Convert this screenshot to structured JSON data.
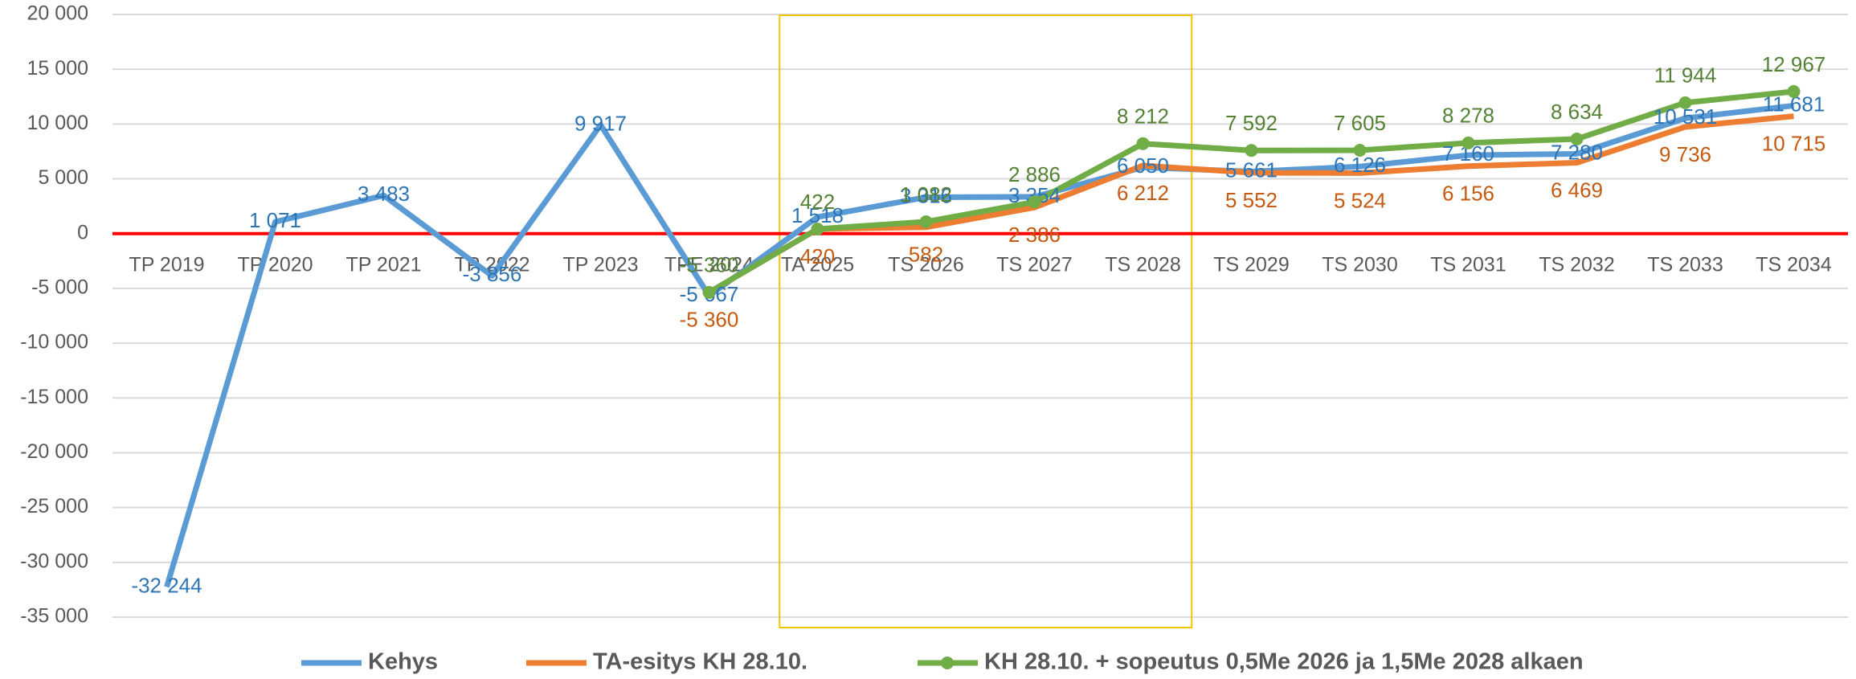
{
  "chart_data": {
    "type": "line",
    "categories": [
      "TP 2019",
      "TP 2020",
      "TP 2021",
      "TP 2022",
      "TP 2023",
      "TPE 2024",
      "TA 2025",
      "TS 2026",
      "TS 2027",
      "TS 2028",
      "TS 2029",
      "TS 2030",
      "TS 2031",
      "TS 2032",
      "TS 2033",
      "TS 2034"
    ],
    "series": [
      {
        "name": "Kehys",
        "color": "#5b9bd5",
        "values": [
          -32244,
          1071,
          3483,
          -3856,
          9917,
          -5667,
          1518,
          3316,
          3354,
          6050,
          5661,
          6126,
          7160,
          7280,
          10531,
          11681
        ],
        "value_labels": [
          "-32 244",
          "1 071",
          "3 483",
          "-3 856",
          "9 917",
          "-5 667",
          "1 518",
          "3 316",
          "3 354",
          "6 050",
          "5 661",
          "6 126",
          "7 160",
          "7 280",
          "10 531",
          "11 681"
        ]
      },
      {
        "name": "TA-esitys KH 28.10.",
        "color": "#ed7d31",
        "values": [
          null,
          null,
          null,
          null,
          null,
          -5360,
          420,
          582,
          2386,
          6212,
          5552,
          5524,
          6156,
          6469,
          9736,
          10715
        ],
        "value_labels": [
          null,
          null,
          null,
          null,
          null,
          "-5 360",
          "420",
          "582",
          "2 386",
          "6 212",
          "5 552",
          "5 524",
          "6 156",
          "6 469",
          "9 736",
          "10 715"
        ]
      },
      {
        "name": "KH 28.10. + sopeutus 0,5Me 2026 ja 1,5Me 2028 alkaen",
        "color": "#70ad47",
        "markers": true,
        "values": [
          null,
          null,
          null,
          null,
          null,
          -5360,
          422,
          1082,
          2886,
          8212,
          7592,
          7605,
          8278,
          8634,
          11944,
          12967
        ],
        "value_labels": [
          null,
          null,
          null,
          null,
          null,
          "-5 360",
          "422",
          "1 082",
          "2 886",
          "8 212",
          "7 592",
          "7 605",
          "8 278",
          "8 634",
          "11 944",
          "12 967"
        ]
      }
    ],
    "ylim": [
      -35000,
      20000
    ],
    "yticks": [
      {
        "value": -35000,
        "label": "-35 000"
      },
      {
        "value": -30000,
        "label": "-30 000"
      },
      {
        "value": -25000,
        "label": "-25 000"
      },
      {
        "value": -20000,
        "label": "-20 000"
      },
      {
        "value": -15000,
        "label": "-15 000"
      },
      {
        "value": -10000,
        "label": "-10 000"
      },
      {
        "value": -5000,
        "label": "-5 000"
      },
      0,
      {
        "value": 5000,
        "label": "5 000"
      },
      {
        "value": 10000,
        "label": "10 000"
      },
      {
        "value": 15000,
        "label": "15 000"
      },
      {
        "value": 20000,
        "label": "20 000"
      }
    ],
    "grid": true,
    "zero_line_color": "#ff0000",
    "legend": "bottom",
    "highlight_box_color": "#f2c500"
  }
}
